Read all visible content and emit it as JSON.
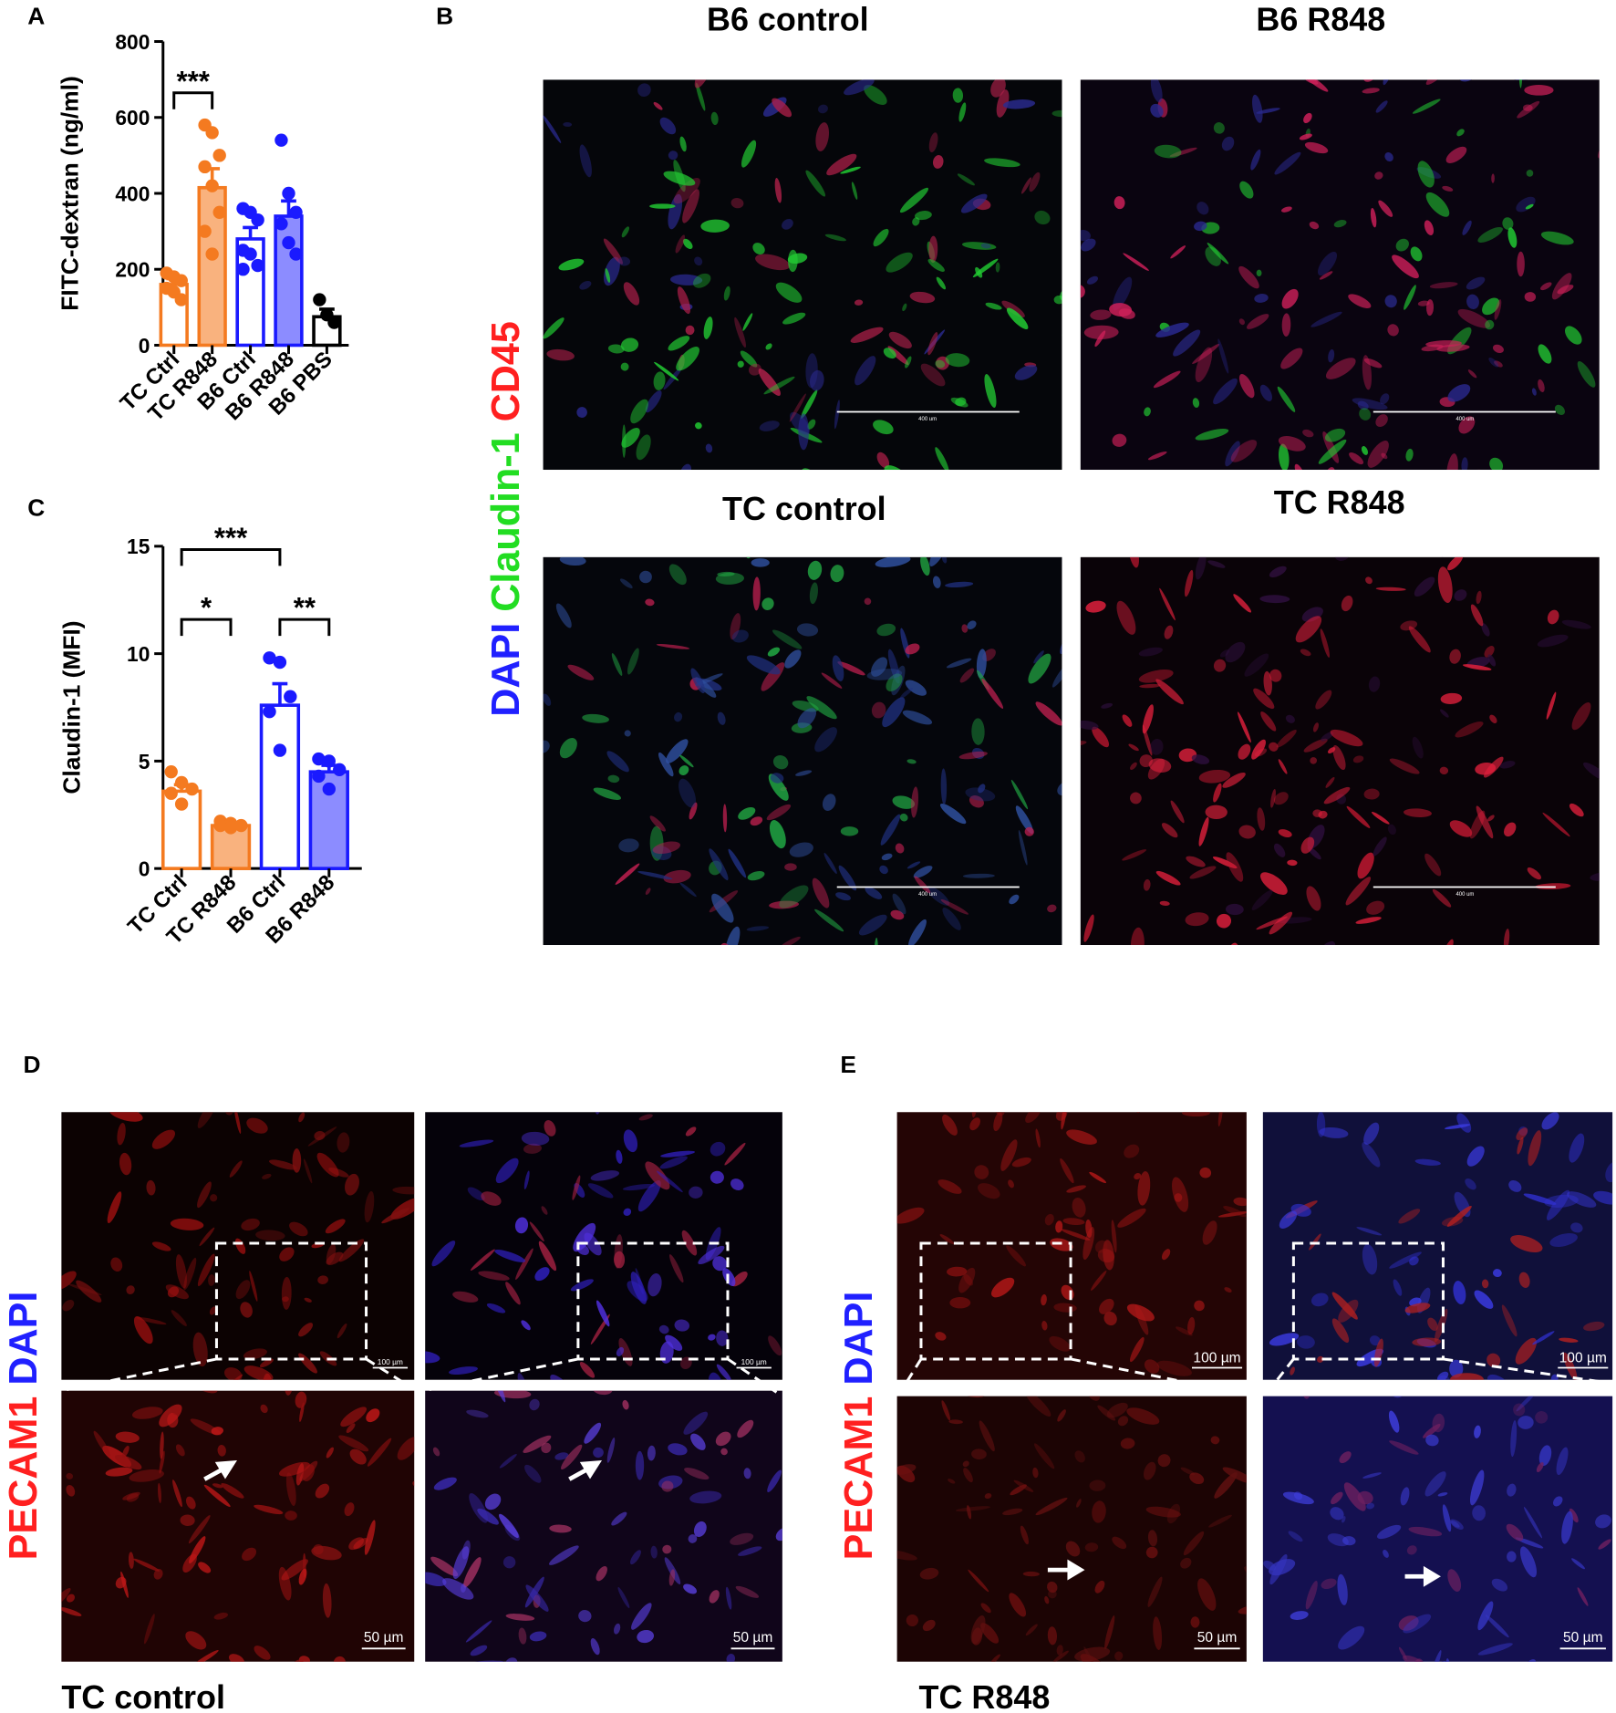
{
  "chart_data": [
    {
      "type": "bar",
      "panel": "A",
      "y_label": "FITC-dextran (ng/ml)",
      "categories": [
        "TC Ctrl",
        "TC R848",
        "B6 Ctrl",
        "B6 R848",
        "B6 PBS"
      ],
      "values": [
        160,
        415,
        280,
        340,
        75
      ],
      "errors": [
        15,
        50,
        30,
        40,
        20
      ],
      "points": [
        [
          190,
          180,
          170,
          150,
          140,
          120
        ],
        [
          580,
          560,
          500,
          470,
          420,
          350,
          300,
          240
        ],
        [
          360,
          350,
          330,
          250,
          240,
          210,
          200
        ],
        [
          540,
          400,
          350,
          320,
          270,
          240
        ],
        [
          120,
          80,
          60
        ]
      ],
      "colors": [
        "#f47a20",
        "#f47a20",
        "#1a1aff",
        "#1a1aff",
        "#000000"
      ],
      "fills": [
        "#ffffff",
        "#f9b27e",
        "#ffffff",
        "#8c8cff",
        "#ffffff"
      ],
      "ylim": [
        0,
        800
      ],
      "yticks": [
        0,
        200,
        400,
        600,
        800
      ],
      "significance": [
        {
          "pair": [
            0,
            1
          ],
          "label": "***"
        }
      ]
    },
    {
      "type": "bar",
      "panel": "C",
      "y_label": "Claudin-1 (MFI)",
      "categories": [
        "TC Ctrl",
        "TC R848",
        "B6 Ctrl",
        "B6 R848"
      ],
      "values": [
        3.6,
        2.0,
        7.6,
        4.5
      ],
      "errors": [
        0.3,
        0.1,
        1.0,
        0.3
      ],
      "points": [
        [
          4.5,
          4.0,
          3.7,
          3.5,
          3.0
        ],
        [
          2.2,
          2.1,
          2.0,
          2.0,
          1.9
        ],
        [
          9.8,
          9.6,
          8.0,
          7.3,
          5.5
        ],
        [
          5.1,
          5.0,
          4.6,
          4.3,
          3.7
        ]
      ],
      "colors": [
        "#f47a20",
        "#f47a20",
        "#1a1aff",
        "#1a1aff"
      ],
      "fills": [
        "#ffffff",
        "#f9b27e",
        "#ffffff",
        "#8c8cff"
      ],
      "ylim": [
        0,
        15
      ],
      "yticks": [
        0,
        5,
        10,
        15
      ],
      "significance": [
        {
          "pair": [
            0,
            2
          ],
          "label": "***"
        },
        {
          "pair": [
            0,
            1
          ],
          "label": "*"
        },
        {
          "pair": [
            2,
            3
          ],
          "label": "**"
        }
      ]
    }
  ],
  "panel_b": {
    "label": "B",
    "stain": [
      {
        "text": "DAPI",
        "color": "#2020ff"
      },
      {
        "text": "Claudin-1",
        "color": "#22dd22"
      },
      {
        "text": "CD45",
        "color": "#ff2020"
      }
    ],
    "images": [
      {
        "title": "B6 control",
        "scale": "400 um"
      },
      {
        "title": "B6 R848",
        "scale": "400 um"
      },
      {
        "title": "TC control",
        "scale": "400 um"
      },
      {
        "title": "TC R848",
        "scale": "400 um"
      }
    ]
  },
  "panel_d": {
    "label": "D",
    "stain": [
      {
        "text": "PECAM1",
        "color": "#ff2020"
      },
      {
        "text": "DAPI",
        "color": "#2020ff"
      }
    ],
    "scales": [
      "100 µm",
      "100 µm",
      "50 µm",
      "50 µm"
    ],
    "caption": "TC control"
  },
  "panel_e": {
    "label": "E",
    "stain": [
      {
        "text": "PECAM1",
        "color": "#ff2020"
      },
      {
        "text": "DAPI",
        "color": "#2020ff"
      }
    ],
    "scales": [
      "100 µm",
      "100 µm",
      "50 µm",
      "50 µm"
    ],
    "caption": "TC R848"
  }
}
